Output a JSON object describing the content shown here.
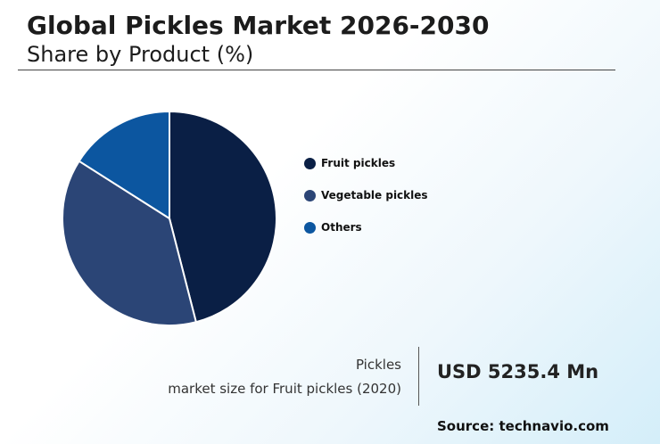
{
  "header": {
    "title": "Global Pickles Market 2026-2030",
    "subtitle": "Share by Product (%)"
  },
  "chart_data": {
    "type": "pie",
    "title": "Global Pickles Market 2026-2030",
    "subtitle": "Share by Product (%)",
    "categories": [
      "Fruit pickles",
      "Vegetable pickles",
      "Others"
    ],
    "values": [
      46,
      38,
      16
    ],
    "colors": [
      "#0a1f45",
      "#2b4576",
      "#0c56a0"
    ],
    "legend_position": "right"
  },
  "stat": {
    "line1": "Pickles",
    "line2": "market size for Fruit pickles (2020)",
    "value": "USD 5235.4 Mn"
  },
  "source": "Source: technavio.com"
}
